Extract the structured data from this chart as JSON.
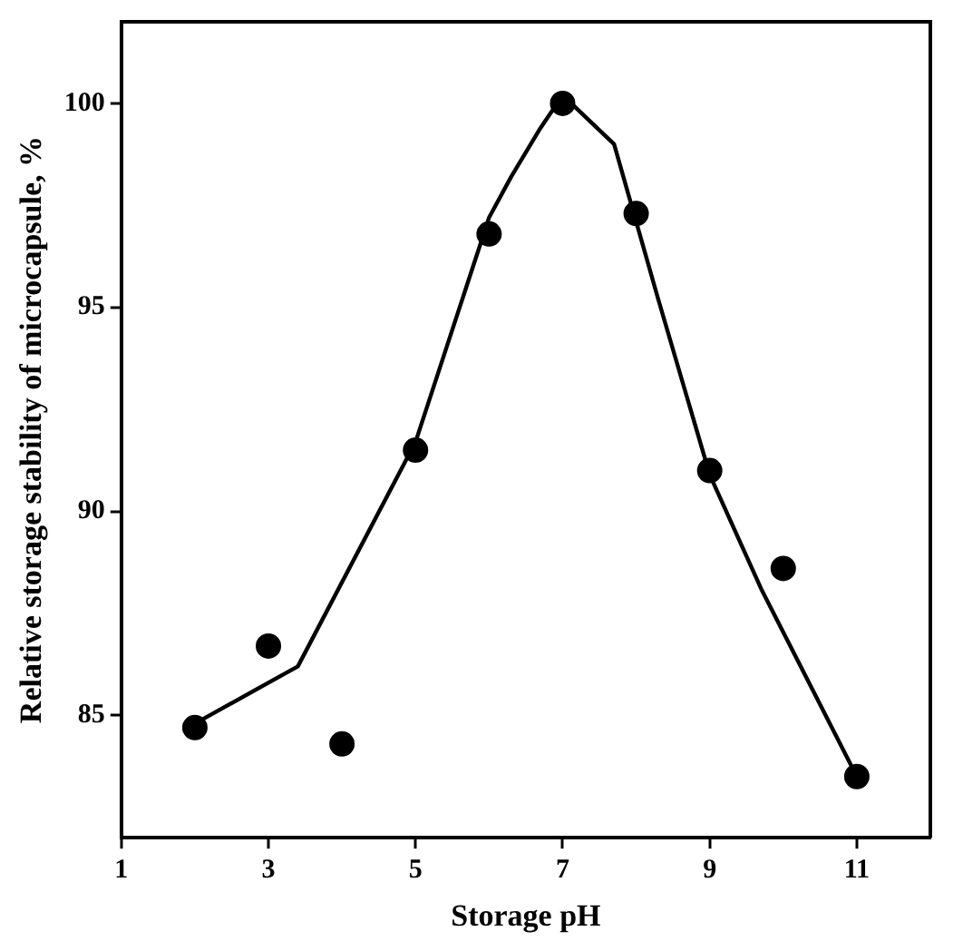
{
  "chart_data": {
    "type": "scatter",
    "xlabel": "Storage pH",
    "ylabel": "Relative storage stability of microcapsule, %",
    "xlim": [
      1,
      12
    ],
    "xticks": [
      1,
      3,
      5,
      7,
      9,
      11
    ],
    "ylim": [
      82,
      102
    ],
    "yticks": [
      85,
      90,
      95,
      100
    ],
    "grid": false,
    "legend": false,
    "marker": "circle",
    "series": [
      {
        "color": "#000000",
        "x": [
          2,
          3,
          4,
          5,
          6,
          7,
          8,
          9,
          10,
          11
        ],
        "values": [
          84.7,
          86.7,
          84.3,
          91.5,
          96.8,
          100,
          97.3,
          91.0,
          88.6,
          83.5
        ]
      },
      {
        "type": "line",
        "color": "#000000",
        "marker": "none",
        "x": [
          2,
          3.4,
          5,
          6,
          6.3,
          6.7,
          7,
          7.7,
          8.0,
          8.3,
          9,
          9.7,
          11
        ],
        "values": [
          84.8,
          86.2,
          91.7,
          97.2,
          98.2,
          99.4,
          100.2,
          99.0,
          97.1,
          95.2,
          90.9,
          88.1,
          83.5
        ]
      }
    ]
  }
}
